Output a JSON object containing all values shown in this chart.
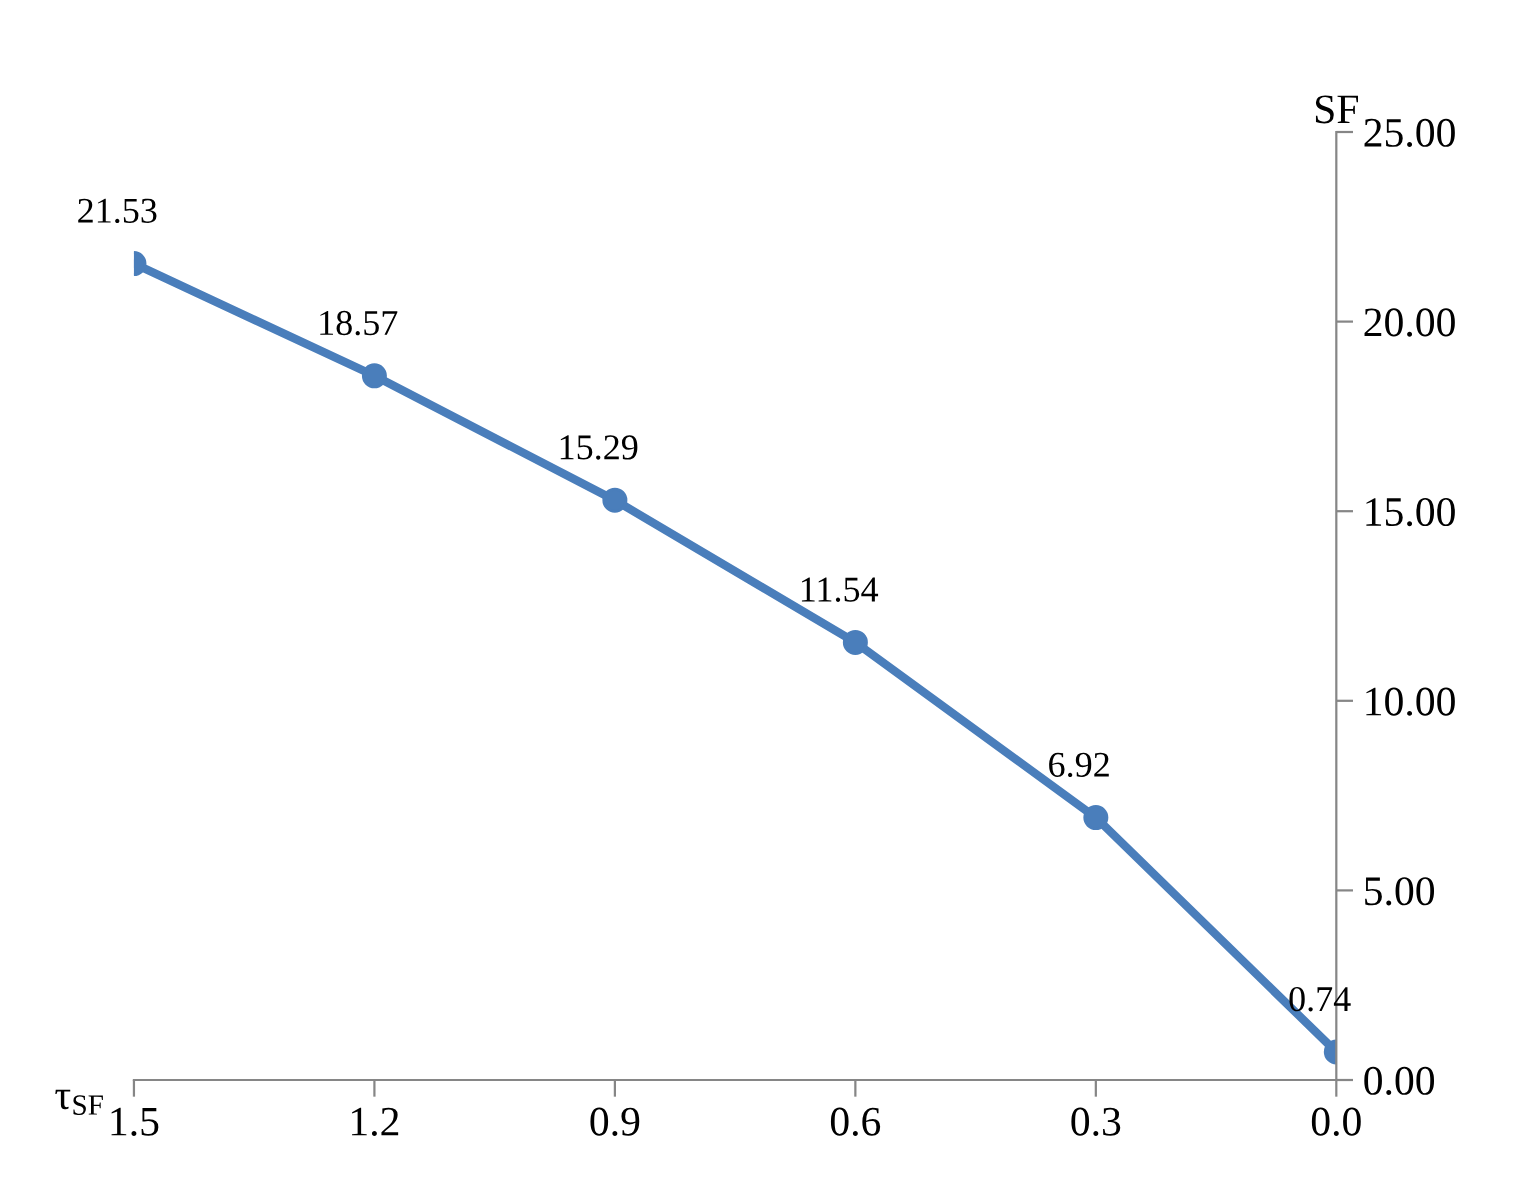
{
  "chart_data": {
    "type": "line",
    "xlabel": "τ$_{SF}$",
    "ylabel": "SF",
    "x": [
      1.5,
      1.2,
      0.9,
      0.6,
      0.3,
      0.0
    ],
    "series": [
      {
        "color": "#4a7ebb",
        "values": [
          21.53,
          18.57,
          15.29,
          11.54,
          6.92,
          0.74
        ]
      }
    ],
    "xlim": [
      1.5,
      0.0
    ],
    "xticks": [
      1.5,
      1.2,
      0.9,
      0.6,
      0.3,
      {
        "value": 0,
        "label": "0.0"
      }
    ],
    "ylim": [
      0,
      25
    ],
    "yticks": [
      {
        "value": 0,
        "label": "0.00"
      },
      {
        "value": 5,
        "label": "5.00"
      },
      {
        "value": 10,
        "label": "10.00"
      },
      {
        "value": 15,
        "label": "15.00"
      },
      {
        "value": 20,
        "label": "20.00"
      },
      {
        "value": 25,
        "label": "25.00"
      }
    ],
    "data_labels": true,
    "marker": "circle",
    "line_style": "solid",
    "grid": false,
    "legend": false
  }
}
